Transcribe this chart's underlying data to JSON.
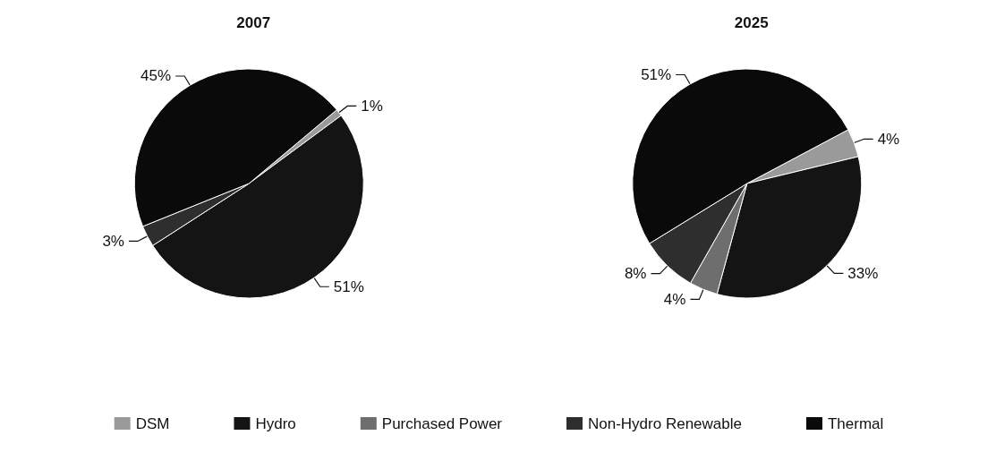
{
  "chart_data": {
    "type": "pie",
    "categories": [
      "DSM",
      "Hydro",
      "Purchased Power",
      "Non-Hydro Renewable",
      "Thermal"
    ],
    "colors": [
      "#9a9a9a",
      "#141414",
      "#6e6e6e",
      "#2e2e2e",
      "#0a0a0a"
    ],
    "legend": "bottom",
    "series": [
      {
        "name": "2007",
        "values": [
          1,
          51,
          null,
          3,
          45
        ],
        "value_labels": [
          "1%",
          "51%",
          null,
          "3%",
          "45%"
        ]
      },
      {
        "name": "2025",
        "values": [
          4,
          33,
          4,
          8,
          51
        ],
        "value_labels": [
          "4%",
          "33%",
          "4%",
          "8%",
          "51%"
        ]
      }
    ]
  }
}
